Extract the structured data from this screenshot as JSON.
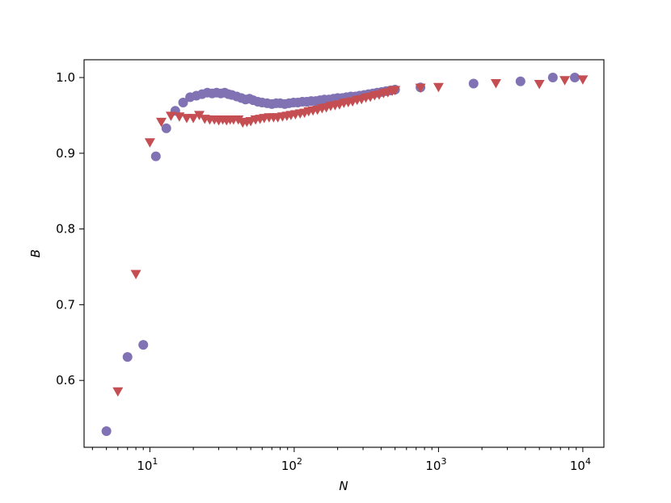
{
  "chart_data": {
    "type": "scatter",
    "xscale": "log",
    "xlim": [
      3.5,
      14000
    ],
    "ylim": [
      0.5117,
      1.0235
    ],
    "xlabel": "N",
    "ylabel": "B",
    "grid": false,
    "x_tick_labels": [
      {
        "base": "10",
        "exp": "1",
        "value": 10
      },
      {
        "base": "10",
        "exp": "2",
        "value": 100
      },
      {
        "base": "10",
        "exp": "3",
        "value": 1000
      },
      {
        "base": "10",
        "exp": "4",
        "value": 10000
      }
    ],
    "y_ticks": [
      {
        "label": "0.6",
        "value": 0.6
      },
      {
        "label": "0.7",
        "value": 0.7
      },
      {
        "label": "0.8",
        "value": 0.8
      },
      {
        "label": "0.9",
        "value": 0.9
      },
      {
        "label": "1.0",
        "value": 1.0
      }
    ],
    "series": [
      {
        "marker": "circle",
        "color": "#8172b3",
        "points": [
          [
            5,
            0.533
          ],
          [
            7,
            0.631
          ],
          [
            9,
            0.647
          ],
          [
            11,
            0.896
          ],
          [
            13,
            0.933
          ],
          [
            15,
            0.956
          ],
          [
            17,
            0.967
          ],
          [
            19,
            0.974
          ],
          [
            21,
            0.976
          ],
          [
            23,
            0.978
          ],
          [
            25,
            0.98
          ],
          [
            27,
            0.979
          ],
          [
            29,
            0.98
          ],
          [
            31,
            0.979
          ],
          [
            33,
            0.98
          ],
          [
            35,
            0.978
          ],
          [
            37,
            0.977
          ],
          [
            40,
            0.975
          ],
          [
            43,
            0.973
          ],
          [
            46,
            0.971
          ],
          [
            49,
            0.972
          ],
          [
            52,
            0.97
          ],
          [
            56,
            0.968
          ],
          [
            60,
            0.967
          ],
          [
            65,
            0.966
          ],
          [
            70,
            0.965
          ],
          [
            75,
            0.966
          ],
          [
            80,
            0.966
          ],
          [
            86,
            0.965
          ],
          [
            92,
            0.966
          ],
          [
            99,
            0.967
          ],
          [
            106,
            0.967
          ],
          [
            114,
            0.968
          ],
          [
            122,
            0.968
          ],
          [
            131,
            0.969
          ],
          [
            141,
            0.969
          ],
          [
            151,
            0.97
          ],
          [
            162,
            0.971
          ],
          [
            174,
            0.971
          ],
          [
            187,
            0.972
          ],
          [
            200,
            0.973
          ],
          [
            215,
            0.973
          ],
          [
            230,
            0.974
          ],
          [
            247,
            0.975
          ],
          [
            265,
            0.975
          ],
          [
            284,
            0.976
          ],
          [
            305,
            0.977
          ],
          [
            327,
            0.978
          ],
          [
            351,
            0.979
          ],
          [
            376,
            0.98
          ],
          [
            404,
            0.981
          ],
          [
            433,
            0.982
          ],
          [
            465,
            0.983
          ],
          [
            500,
            0.984
          ],
          [
            750,
            0.987
          ],
          [
            1750,
            0.992
          ],
          [
            3700,
            0.995
          ],
          [
            6200,
            1.0
          ],
          [
            8800,
            1.0
          ]
        ]
      },
      {
        "marker": "triangle-down",
        "color": "#c44e52",
        "points": [
          [
            6,
            0.585
          ],
          [
            8,
            0.74
          ],
          [
            10,
            0.914
          ],
          [
            12,
            0.941
          ],
          [
            14,
            0.949
          ],
          [
            16,
            0.948
          ],
          [
            18,
            0.946
          ],
          [
            20,
            0.946
          ],
          [
            22,
            0.95
          ],
          [
            24,
            0.945
          ],
          [
            26,
            0.944
          ],
          [
            28,
            0.944
          ],
          [
            30,
            0.943
          ],
          [
            32,
            0.944
          ],
          [
            34,
            0.943
          ],
          [
            36,
            0.944
          ],
          [
            38,
            0.944
          ],
          [
            41,
            0.944
          ],
          [
            44,
            0.94
          ],
          [
            47,
            0.941
          ],
          [
            50,
            0.942
          ],
          [
            54,
            0.944
          ],
          [
            58,
            0.945
          ],
          [
            62,
            0.946
          ],
          [
            67,
            0.947
          ],
          [
            72,
            0.947
          ],
          [
            77,
            0.947
          ],
          [
            83,
            0.948
          ],
          [
            89,
            0.949
          ],
          [
            95,
            0.95
          ],
          [
            102,
            0.951
          ],
          [
            110,
            0.952
          ],
          [
            118,
            0.953
          ],
          [
            126,
            0.955
          ],
          [
            135,
            0.956
          ],
          [
            145,
            0.957
          ],
          [
            156,
            0.959
          ],
          [
            167,
            0.96
          ],
          [
            179,
            0.962
          ],
          [
            192,
            0.963
          ],
          [
            206,
            0.964
          ],
          [
            221,
            0.966
          ],
          [
            237,
            0.967
          ],
          [
            254,
            0.968
          ],
          [
            273,
            0.97
          ],
          [
            293,
            0.971
          ],
          [
            314,
            0.973
          ],
          [
            337,
            0.974
          ],
          [
            361,
            0.976
          ],
          [
            388,
            0.977
          ],
          [
            416,
            0.979
          ],
          [
            446,
            0.98
          ],
          [
            478,
            0.982
          ],
          [
            500,
            0.983
          ],
          [
            750,
            0.986
          ],
          [
            1000,
            0.987
          ],
          [
            2500,
            0.992
          ],
          [
            5000,
            0.991
          ],
          [
            7500,
            0.996
          ],
          [
            10000,
            0.997
          ]
        ]
      }
    ]
  }
}
